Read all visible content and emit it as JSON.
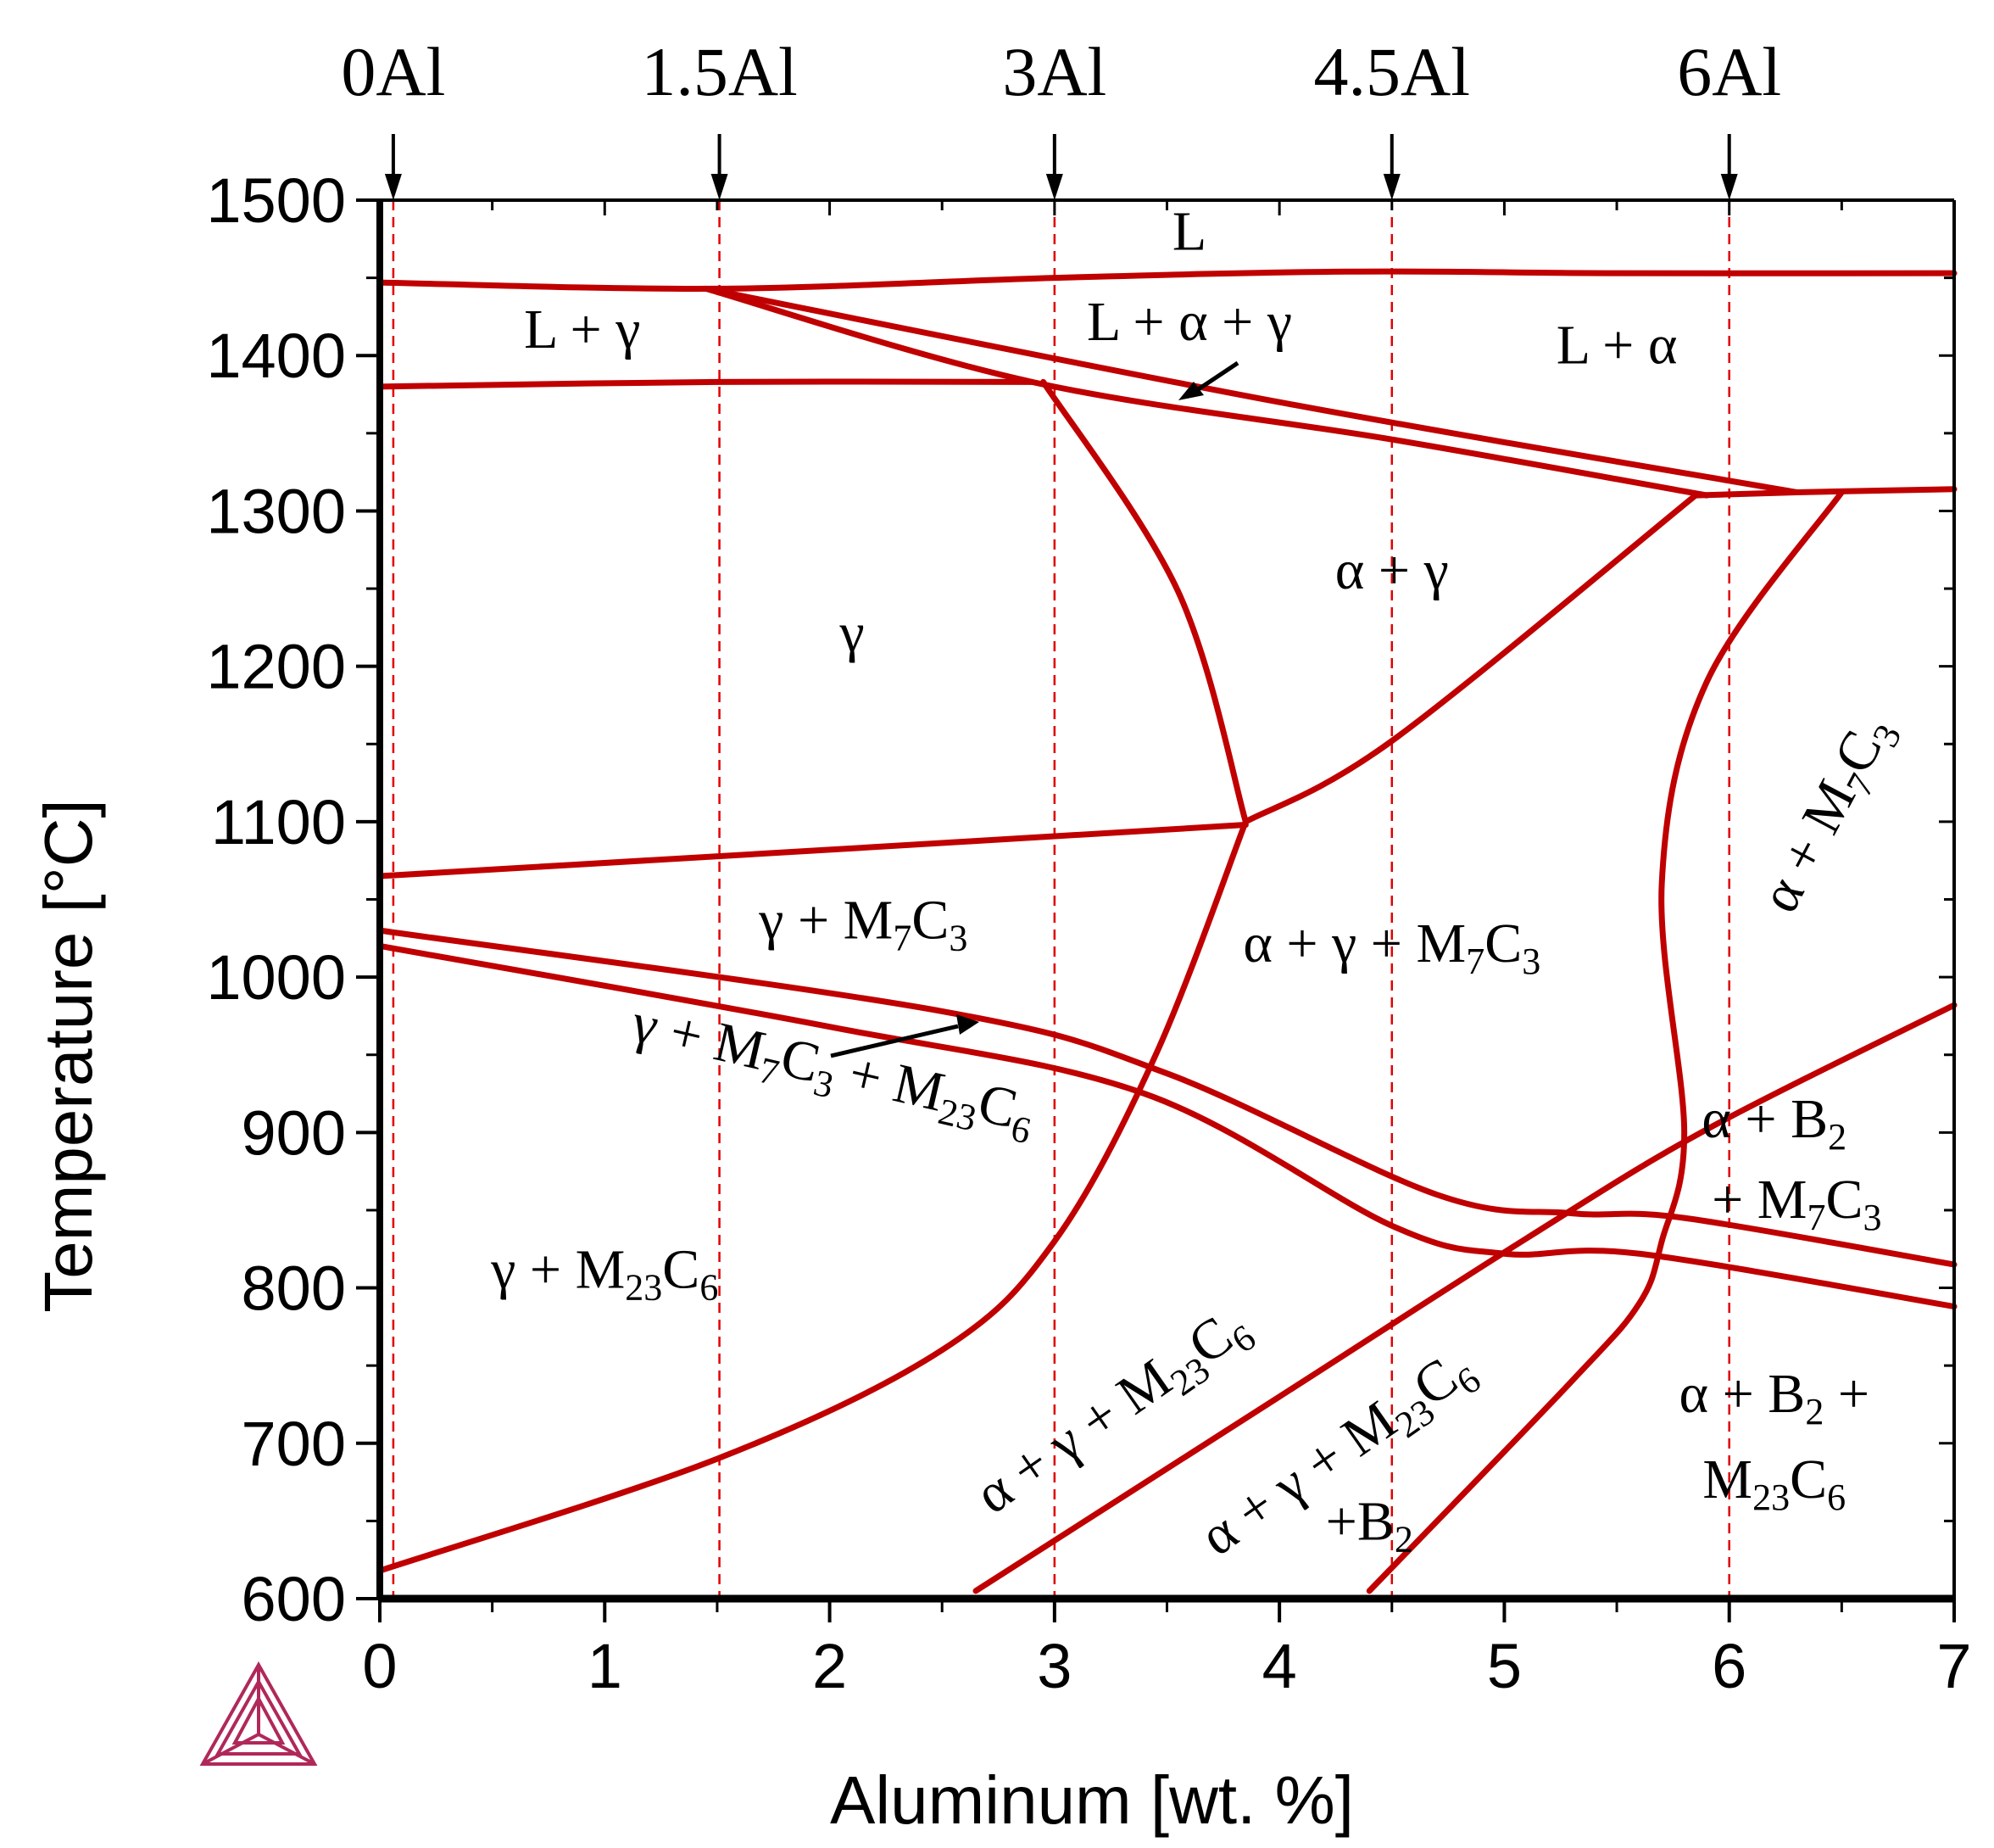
{
  "chart_data": {
    "type": "phase_diagram",
    "xlabel": "Aluminum [wt. %]",
    "ylabel": "Temperature [°C]",
    "xlim": [
      0,
      7
    ],
    "ylim": [
      600,
      1500
    ],
    "xticks": [
      "0",
      "1",
      "2",
      "3",
      "4",
      "5",
      "6",
      "7"
    ],
    "yticks": [
      "600",
      "700",
      "800",
      "900",
      "1000",
      "1100",
      "1200",
      "1300",
      "1400",
      "1500"
    ],
    "alloys": [
      {
        "label": "0Al",
        "x": 0.06
      },
      {
        "label": "1.5Al",
        "x": 1.51
      },
      {
        "label": "3Al",
        "x": 3.0
      },
      {
        "label": "4.5Al",
        "x": 4.5
      },
      {
        "label": "6Al",
        "x": 6.0
      }
    ],
    "phase_boundaries": [
      {
        "name": "liquidus",
        "points": [
          [
            0,
            1447
          ],
          [
            1.5,
            1443
          ],
          [
            3,
            1450
          ],
          [
            4.3,
            1454
          ],
          [
            5.5,
            1453
          ],
          [
            7,
            1453
          ]
        ]
      },
      {
        "name": "solidus-gamma",
        "points": [
          [
            0,
            1380
          ],
          [
            1.5,
            1383
          ],
          [
            2.9,
            1383
          ]
        ]
      },
      {
        "name": "L-alpha-gamma-upper",
        "points": [
          [
            1.45,
            1443
          ],
          [
            4.0,
            1370
          ],
          [
            6.3,
            1312
          ]
        ]
      },
      {
        "name": "L-alpha-gamma-lower",
        "points": [
          [
            1.45,
            1443
          ],
          [
            2.9,
            1383
          ],
          [
            4.5,
            1346
          ],
          [
            5.9,
            1310
          ]
        ]
      },
      {
        "name": "solidus-alpha",
        "points": [
          [
            5.85,
            1310
          ],
          [
            6.3,
            1312
          ],
          [
            7,
            1314
          ]
        ]
      },
      {
        "name": "gamma-alpha-solvus",
        "points": [
          [
            2.95,
            1383
          ],
          [
            3.55,
            1248
          ],
          [
            3.85,
            1100
          ]
        ]
      },
      {
        "name": "alpha-gamma-lower",
        "points": [
          [
            3.85,
            1100
          ],
          [
            4.5,
            1152
          ],
          [
            5.85,
            1310
          ]
        ]
      },
      {
        "name": "M7C3-solvus-gamma",
        "points": [
          [
            0,
            1065
          ],
          [
            2,
            1082
          ],
          [
            3.85,
            1098
          ]
        ]
      },
      {
        "name": "alpha-M7C3-solvus",
        "points": [
          [
            6.5,
            1312
          ],
          [
            5.9,
            1190
          ],
          [
            5.7,
            1060
          ],
          [
            5.8,
            900
          ],
          [
            5.7,
            830
          ],
          [
            5.6,
            790
          ],
          [
            5.3,
            740
          ],
          [
            4.4,
            605
          ]
        ]
      },
      {
        "name": "M23C6-solvus-upper",
        "points": [
          [
            0,
            1030
          ],
          [
            2.5,
            978
          ],
          [
            3.5,
            938
          ],
          [
            4.7,
            860
          ],
          [
            5.3,
            848
          ],
          [
            5.8,
            845
          ],
          [
            7,
            815
          ]
        ]
      },
      {
        "name": "M23C6-solvus-lower",
        "points": [
          [
            0,
            1020
          ],
          [
            2,
            968
          ],
          [
            3.4,
            925
          ],
          [
            4.5,
            840
          ],
          [
            5.0,
            822
          ],
          [
            5.6,
            822
          ],
          [
            7,
            788
          ]
        ]
      },
      {
        "name": "gamma-alpha-low",
        "points": [
          [
            3.85,
            1100
          ],
          [
            3.45,
            950
          ],
          [
            3.0,
            830
          ],
          [
            2.5,
            760
          ],
          [
            1.5,
            690
          ],
          [
            0,
            618
          ]
        ]
      },
      {
        "name": "B2-solvus",
        "points": [
          [
            2.65,
            605
          ],
          [
            4.0,
            730
          ],
          [
            5.1,
            832
          ],
          [
            5.9,
            902
          ],
          [
            7,
            982
          ]
        ]
      }
    ],
    "region_labels": [
      {
        "text": "L",
        "sub": "",
        "x": 3.6,
        "y": 1468
      },
      {
        "text": "L + γ",
        "sub": "",
        "x": 0.9,
        "y": 1405
      },
      {
        "text": "L + α + γ",
        "sub": "",
        "x": 3.6,
        "y": 1410
      },
      {
        "text": "L + α",
        "sub": "",
        "x": 5.5,
        "y": 1395
      },
      {
        "text": "α + γ",
        "sub": "",
        "x": 4.5,
        "y": 1250
      },
      {
        "text": "γ",
        "sub": "",
        "x": 2.1,
        "y": 1210
      },
      {
        "text": "α + M7C3",
        "sub": "",
        "x": 6.5,
        "y": 1100
      },
      {
        "text": "γ + M7C3",
        "sub": "",
        "x": 2.15,
        "y": 1025
      },
      {
        "text": "α + γ + M7C3",
        "sub": "",
        "x": 4.5,
        "y": 1010
      },
      {
        "text": "γ + M7C3 + M23C6",
        "sub": "",
        "x": 2.0,
        "y": 930
      },
      {
        "text": "α + B2",
        "sub": "",
        "x": 6.2,
        "y": 897
      },
      {
        "text": "+ M7C3",
        "sub": "",
        "x": 6.3,
        "y": 845
      },
      {
        "text": "γ + M23C6",
        "sub": "",
        "x": 1.0,
        "y": 800
      },
      {
        "text": "α + γ + M23C6",
        "sub": "",
        "x": 3.3,
        "y": 712
      },
      {
        "text": "α + γ + M23C6",
        "sub": "",
        "x": 4.3,
        "y": 685
      },
      {
        "text": "+B2",
        "sub": "",
        "x": 4.4,
        "y": 638
      },
      {
        "text": "α + B2 +",
        "sub": "",
        "x": 6.2,
        "y": 720
      },
      {
        "text": "M23C6",
        "sub": "",
        "x": 6.2,
        "y": 665
      }
    ]
  },
  "colors": {
    "boundary": "#c00000",
    "guide": "#e00000",
    "axis": "#000000",
    "logo": "#b0285a"
  },
  "logo": "thermo-calc-logo"
}
